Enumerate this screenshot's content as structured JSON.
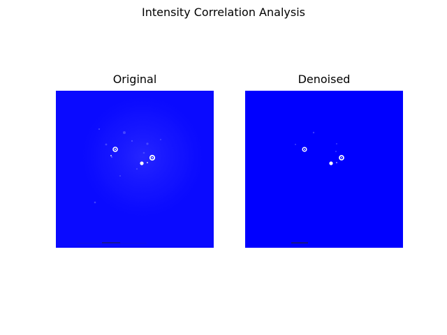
{
  "figure": {
    "title": "Intensity Correlation Analysis"
  },
  "panels": [
    {
      "title": "Original",
      "colormap": "#0000ff"
    },
    {
      "title": "Denoised",
      "colormap": "#0000ff"
    }
  ]
}
